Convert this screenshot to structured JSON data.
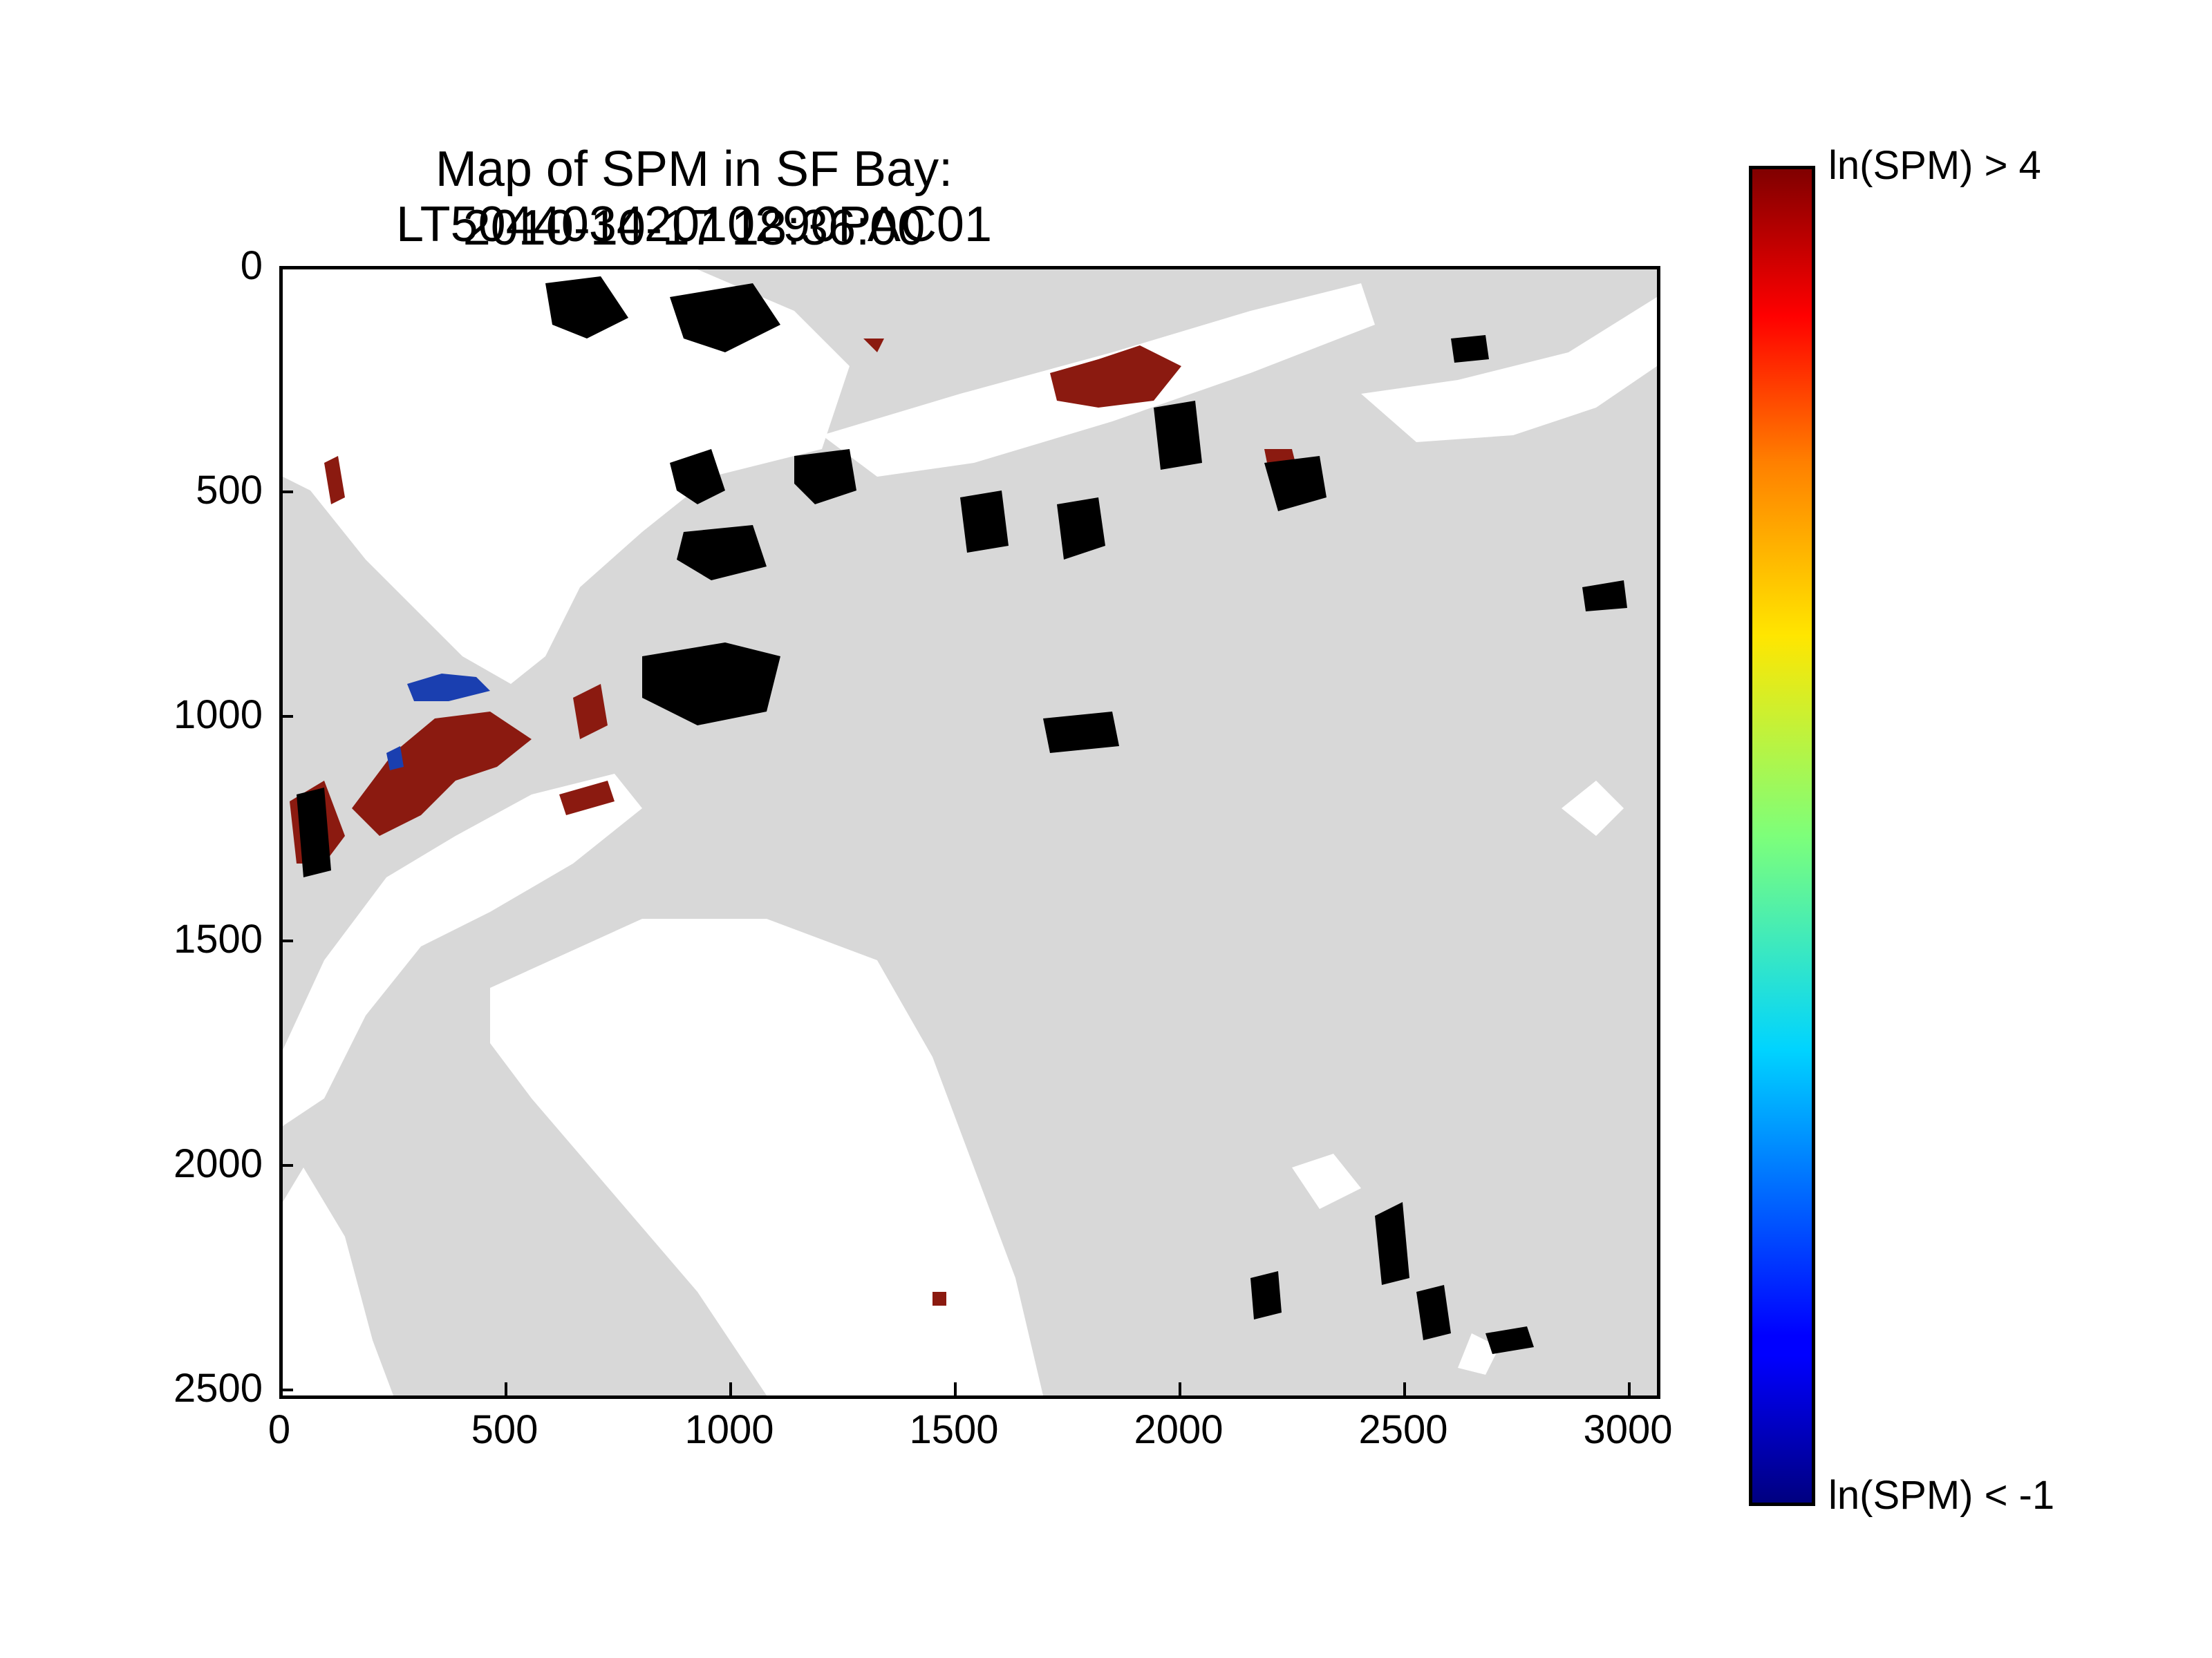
{
  "title": {
    "line1": "Map of SPM in SF Bay: LT50440342010290PAC01",
    "line2": "2010-10-17 18:36:00"
  },
  "axes": {
    "x_ticks": [
      "0",
      "500",
      "1000",
      "1500",
      "2000",
      "2500",
      "3000"
    ],
    "y_ticks": [
      "0",
      "500",
      "1000",
      "1500",
      "2000",
      "2500"
    ]
  },
  "colorbar": {
    "max_label": "ln(SPM) > 4",
    "min_label": "ln(SPM) < -1"
  },
  "colors": {
    "land": "#d8d8d8",
    "water": "#ffffff",
    "high_spm": "#8b1a10",
    "low_spm": "#1a3fb0",
    "nodata": "#000000"
  }
}
